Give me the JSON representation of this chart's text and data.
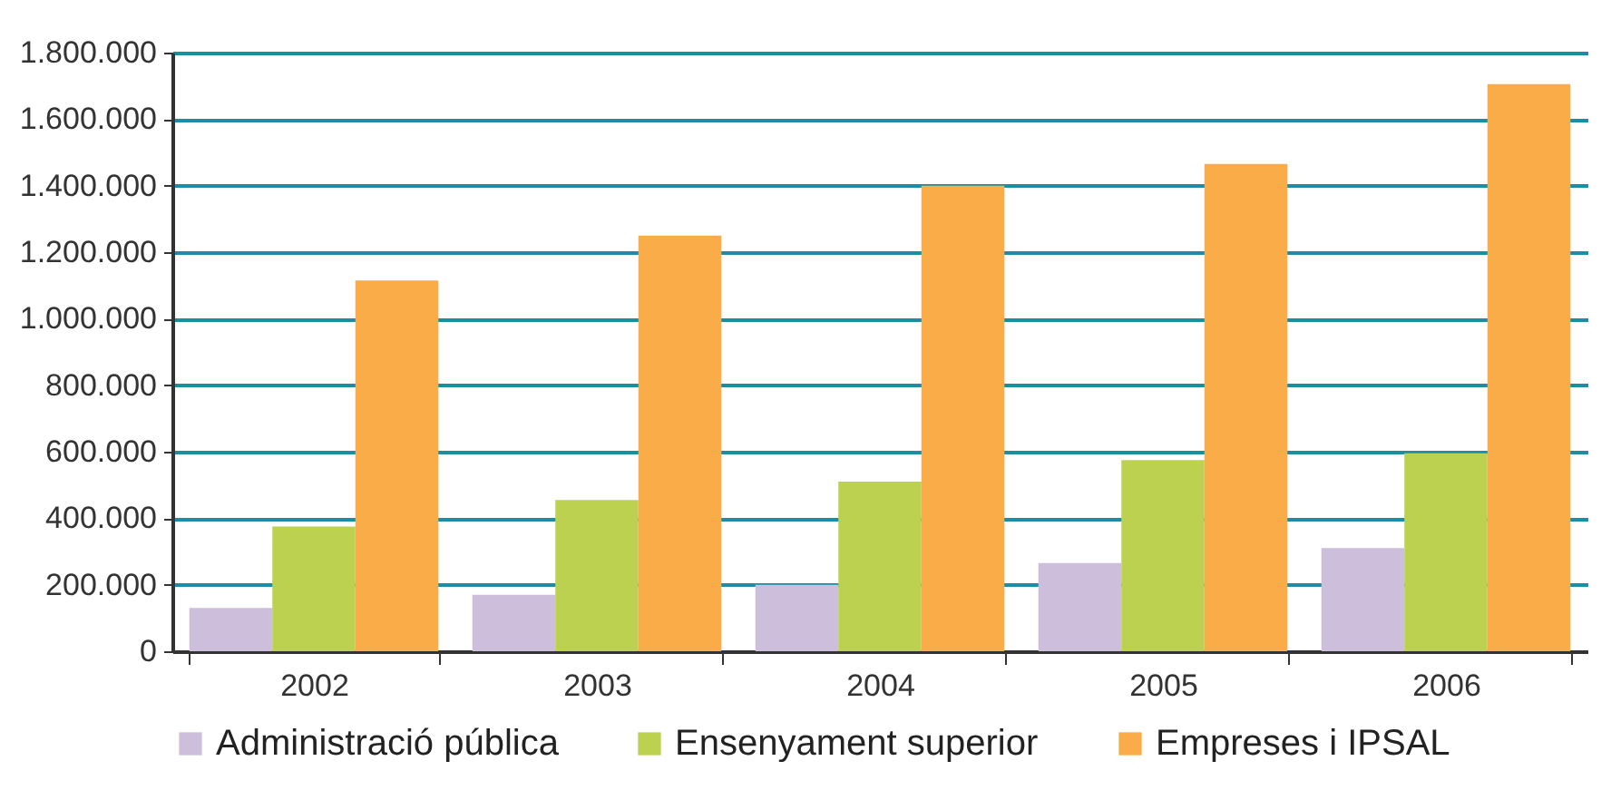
{
  "chart_data": {
    "type": "bar",
    "categories": [
      "2002",
      "2003",
      "2004",
      "2005",
      "2006"
    ],
    "series": [
      {
        "name": "Administració pública",
        "color": "#cdbfdc",
        "values": [
          130000,
          170000,
          200000,
          265000,
          310000
        ]
      },
      {
        "name": "Ensenyament superior",
        "color": "#bdd150",
        "values": [
          375000,
          455000,
          510000,
          575000,
          595000
        ]
      },
      {
        "name": "Empreses i IPSAL",
        "color": "#f9ac48",
        "values": [
          1115000,
          1250000,
          1400000,
          1465000,
          1705000
        ]
      }
    ],
    "ylim": [
      0,
      1800000
    ],
    "yticks": [
      {
        "value": 0,
        "label": "0"
      },
      {
        "value": 200000,
        "label": "200.000"
      },
      {
        "value": 400000,
        "label": "400.000"
      },
      {
        "value": 600000,
        "label": "600.000"
      },
      {
        "value": 800000,
        "label": "800.000"
      },
      {
        "value": 1000000,
        "label": "1.000.000"
      },
      {
        "value": 1200000,
        "label": "1.200.000"
      },
      {
        "value": 1400000,
        "label": "1.400.000"
      },
      {
        "value": 1600000,
        "label": "1.600.000"
      },
      {
        "value": 1800000,
        "label": "1.800.000"
      }
    ],
    "grid": "y",
    "legend": "bottom"
  }
}
